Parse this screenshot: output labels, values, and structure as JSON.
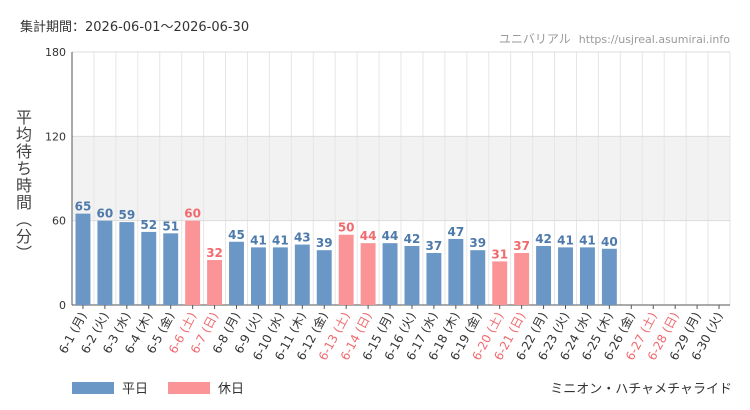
{
  "header": {
    "period": "集計期間：2026-06-01～2026-06-30",
    "site_name": "ユニバリアル",
    "site_url": "https://usjreal.asumirai.info"
  },
  "footer": {
    "attraction": "ミニオン・ハチャメチャライド"
  },
  "colors": {
    "weekday": "#6b97c7",
    "holiday": "#fa9496",
    "weekday_label": "#4d7aab",
    "holiday_label": "#f06a6e",
    "band": "#f2f2f2",
    "grid": "#e6e6e6"
  },
  "chart_data": {
    "type": "bar",
    "ylabel": "平均待ち時間（分）",
    "ylim": [
      0,
      180
    ],
    "yticks": [
      0,
      60,
      120,
      180
    ],
    "categories": [
      "6-1 (月)",
      "6-2 (火)",
      "6-3 (水)",
      "6-4 (木)",
      "6-5 (金)",
      "6-6 (土)",
      "6-7 (日)",
      "6-8 (月)",
      "6-9 (火)",
      "6-10 (水)",
      "6-11 (木)",
      "6-12 (金)",
      "6-13 (土)",
      "6-14 (日)",
      "6-15 (月)",
      "6-16 (火)",
      "6-17 (水)",
      "6-18 (木)",
      "6-19 (金)",
      "6-20 (土)",
      "6-21 (日)",
      "6-22 (月)",
      "6-23 (火)",
      "6-24 (水)",
      "6-25 (木)",
      "6-26 (金)",
      "6-27 (土)",
      "6-28 (日)",
      "6-29 (月)",
      "6-30 (火)"
    ],
    "values": [
      65,
      60,
      59,
      52,
      51,
      60,
      32,
      45,
      41,
      41,
      43,
      39,
      50,
      44,
      44,
      42,
      37,
      47,
      39,
      31,
      37,
      42,
      41,
      41,
      40,
      null,
      null,
      null,
      null,
      null
    ],
    "day_type": [
      "平日",
      "平日",
      "平日",
      "平日",
      "平日",
      "休日",
      "休日",
      "平日",
      "平日",
      "平日",
      "平日",
      "平日",
      "休日",
      "休日",
      "平日",
      "平日",
      "平日",
      "平日",
      "平日",
      "休日",
      "休日",
      "平日",
      "平日",
      "平日",
      "平日",
      "平日",
      "休日",
      "休日",
      "平日",
      "平日"
    ],
    "legend": [
      {
        "name": "平日",
        "color": "#6b97c7"
      },
      {
        "name": "休日",
        "color": "#fa9496"
      }
    ],
    "band_range": [
      60,
      120
    ],
    "grid": true
  }
}
